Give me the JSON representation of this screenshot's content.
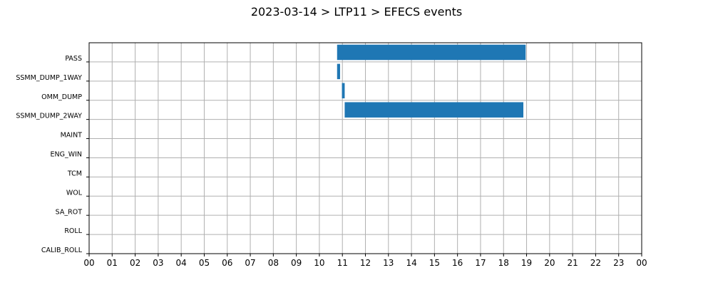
{
  "chart_data": {
    "type": "bar",
    "orientation": "horizontal",
    "title": "2023-03-14 > LTP11 > EFECS events",
    "xlabel": "",
    "ylabel": "",
    "xlim": [
      0,
      24
    ],
    "x_ticks": [
      "00",
      "01",
      "02",
      "03",
      "04",
      "05",
      "06",
      "07",
      "08",
      "09",
      "10",
      "11",
      "12",
      "13",
      "14",
      "15",
      "16",
      "17",
      "18",
      "19",
      "20",
      "21",
      "22",
      "23",
      "00"
    ],
    "categories": [
      "PASS",
      "SSMM_DUMP_1WAY",
      "OMM_DUMP",
      "SSMM_DUMP_2WAY",
      "MAINT",
      "ENG_WIN",
      "TCM",
      "WOL",
      "SA_ROT",
      "ROLL",
      "CALIB_ROLL"
    ],
    "events": [
      {
        "category": "PASS",
        "start": 10.77,
        "end": 18.96
      },
      {
        "category": "SSMM_DUMP_1WAY",
        "start": 10.77,
        "end": 10.9
      },
      {
        "category": "OMM_DUMP",
        "start": 10.98,
        "end": 11.1
      },
      {
        "category": "SSMM_DUMP_2WAY",
        "start": 11.1,
        "end": 18.86
      }
    ],
    "grid": true,
    "bar_color": "#1f77b4"
  }
}
